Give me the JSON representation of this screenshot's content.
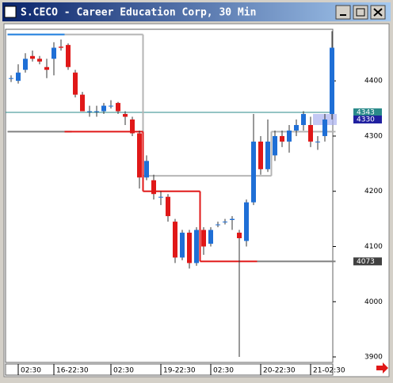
{
  "chart_data": {
    "type": "candlestick",
    "title": "S.CECO - Career Education Corp, 30 Min",
    "categories": [
      null,
      "02:30",
      null,
      null,
      null,
      null,
      "16-22:30",
      null,
      null,
      null,
      null,
      null,
      null,
      null,
      "02:30",
      null,
      null,
      null,
      null,
      null,
      null,
      "19-22:30",
      null,
      null,
      null,
      null,
      null,
      null,
      "02:30",
      null,
      null,
      null,
      null,
      null,
      null,
      "20-22:30",
      null,
      null,
      null,
      null,
      null,
      null,
      "21-02:30",
      null,
      null,
      null
    ],
    "open": [
      4405,
      4400,
      4420,
      4445,
      4440,
      4425,
      4440,
      4462,
      4465,
      4415,
      4375,
      4345,
      4345,
      4345,
      4355,
      4360,
      4340,
      4330,
      4305,
      4225,
      4220,
      4190,
      4190,
      4145,
      4080,
      4125,
      4070,
      4130,
      4105,
      4140,
      4145,
      4148,
      4125,
      4110,
      4180,
      4290,
      4240,
      4265,
      4300,
      4290,
      4310,
      4320,
      4320,
      4290,
      4300,
      4340
    ],
    "high": [
      4410,
      4430,
      4450,
      4455,
      4445,
      4440,
      4470,
      4475,
      4468,
      4420,
      4380,
      4355,
      4355,
      4360,
      4365,
      4362,
      4345,
      4335,
      4310,
      4265,
      4230,
      4200,
      4195,
      4150,
      4130,
      4130,
      4135,
      4135,
      4135,
      4145,
      4150,
      4155,
      4130,
      4185,
      4340,
      4300,
      4330,
      4310,
      4310,
      4320,
      4330,
      4345,
      4335,
      4300,
      4340,
      4490
    ],
    "low": [
      4398,
      4395,
      4415,
      4435,
      4430,
      4405,
      4410,
      4455,
      4420,
      4370,
      4345,
      4335,
      4335,
      4340,
      4350,
      4340,
      4320,
      4300,
      4205,
      4220,
      4185,
      4175,
      4145,
      4070,
      4075,
      4060,
      4065,
      4085,
      4100,
      4135,
      4140,
      4130,
      3900,
      4100,
      4175,
      4230,
      4235,
      4255,
      4280,
      4270,
      4300,
      4310,
      4280,
      4275,
      4290,
      4330
    ],
    "close": [
      4405,
      4415,
      4440,
      4440,
      4435,
      4420,
      4460,
      4460,
      4425,
      4375,
      4345,
      4345,
      4345,
      4355,
      4355,
      4345,
      4335,
      4305,
      4225,
      4255,
      4195,
      4190,
      4155,
      4080,
      4125,
      4070,
      4130,
      4100,
      4130,
      4140,
      4145,
      4150,
      4115,
      4180,
      4290,
      4240,
      4290,
      4300,
      4290,
      4310,
      4320,
      4340,
      4290,
      4290,
      4330,
      4460
    ],
    "up_color": "#1f6fd6",
    "down_color": "#e01818",
    "series": [
      {
        "color": "#b4b4b4",
        "values": [
          4484,
          4484,
          4484,
          4484,
          4484,
          4484,
          4484,
          4484,
          4484,
          4484,
          4484,
          4484,
          4484,
          4484,
          4484,
          4484,
          4484,
          4484,
          4484,
          4228,
          4228,
          4228,
          4228,
          4228,
          4228,
          4228,
          4228,
          4228,
          4228,
          4228,
          4228,
          4228,
          4228,
          4228,
          4228,
          4228,
          4228,
          4308,
          4308,
          4308,
          4308,
          4308,
          4308,
          4308,
          4308,
          4308
        ]
      },
      {
        "color": "#1f7fe0",
        "values": [
          4484,
          4484,
          4484,
          4484,
          4484,
          4484,
          4484,
          4484,
          null,
          null,
          null,
          null,
          null,
          null,
          null,
          null,
          null,
          null,
          null,
          null,
          null,
          null,
          null,
          null,
          null,
          null,
          null,
          null,
          null,
          null,
          null,
          null,
          null,
          null,
          null,
          null,
          null,
          null,
          null,
          null,
          null,
          null,
          null,
          null,
          null,
          null
        ]
      },
      {
        "color": "#808080",
        "values": [
          4308,
          4308,
          4308,
          4308,
          4308,
          4308,
          4308,
          4308,
          4308,
          null,
          null,
          null,
          null,
          null,
          null,
          null,
          null,
          null,
          null,
          null,
          null,
          null,
          null,
          null,
          null,
          null,
          null,
          null,
          null,
          null,
          null,
          null,
          null,
          null,
          null,
          4073,
          4073,
          4073,
          4073,
          4073,
          4073,
          4073,
          4073,
          4073,
          4073,
          4073
        ]
      },
      {
        "color": "#e01818",
        "values": [
          null,
          null,
          null,
          null,
          null,
          null,
          null,
          null,
          4308,
          4308,
          4308,
          4308,
          4308,
          4308,
          4308,
          4308,
          4308,
          4308,
          4308,
          4200,
          4200,
          4200,
          4200,
          4200,
          4200,
          4200,
          4200,
          4073,
          4073,
          4073,
          4073,
          4073,
          4073,
          4073,
          4073,
          null,
          null,
          null,
          null,
          null,
          null,
          null,
          null,
          null,
          null,
          null
        ]
      }
    ],
    "price_labels": [
      4343,
      4330,
      4073
    ],
    "ylim": [
      3890,
      4492
    ],
    "yticks": [
      3900,
      4000,
      4100,
      4200,
      4300,
      4400
    ]
  }
}
